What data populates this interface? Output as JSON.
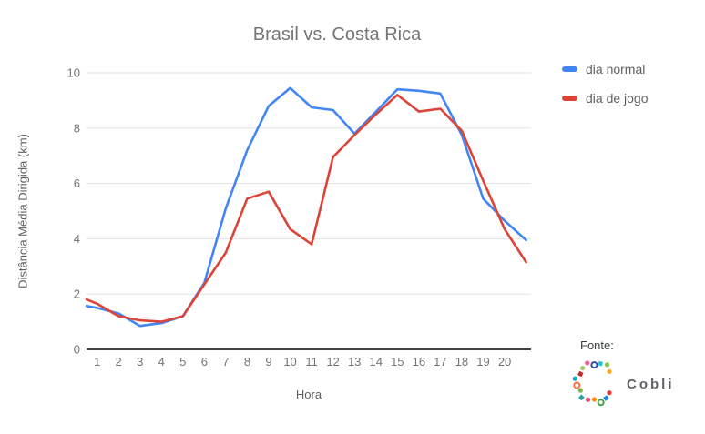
{
  "title": "Brasil vs. Costa Rica",
  "legend": {
    "items": [
      {
        "label": "dia normal",
        "color": "#4285F4"
      },
      {
        "label": "dia de jogo",
        "color": "#DB4437"
      }
    ]
  },
  "chart_data": {
    "type": "line",
    "title": "Brasil vs. Costa Rica",
    "xlabel": "Hora",
    "ylabel": "Distância Média Dirigida (km)",
    "x": [
      1,
      2,
      3,
      4,
      5,
      6,
      7,
      8,
      9,
      10,
      11,
      12,
      13,
      14,
      15,
      16,
      17,
      18,
      19,
      20,
      21
    ],
    "x_tick_labels": [
      "1",
      "2",
      "3",
      "4",
      "5",
      "6",
      "7",
      "8",
      "9",
      "10",
      "11",
      "12",
      "13",
      "14",
      "15",
      "16",
      "17",
      "18",
      "19",
      "20"
    ],
    "yticks": [
      0,
      2,
      4,
      6,
      8,
      10
    ],
    "ylim": [
      0,
      10
    ],
    "grid": true,
    "legend_position": "top-right",
    "axis_color": "#424242",
    "grid_color": "#e3e3e3",
    "series": [
      {
        "name": "dia normal",
        "color": "#4285F4",
        "values": [
          1.5,
          1.3,
          0.85,
          0.95,
          1.2,
          2.4,
          5.1,
          7.2,
          8.8,
          9.45,
          8.75,
          8.65,
          7.8,
          8.6,
          9.4,
          9.35,
          9.25,
          7.75,
          5.45,
          4.65,
          3.95
        ]
      },
      {
        "name": "dia de jogo",
        "color": "#DB4437",
        "values": [
          1.65,
          1.2,
          1.05,
          1.0,
          1.2,
          2.35,
          3.5,
          5.45,
          5.7,
          4.35,
          3.8,
          6.95,
          7.75,
          8.5,
          9.2,
          8.6,
          8.7,
          7.9,
          6.1,
          4.35,
          3.15
        ]
      }
    ]
  },
  "source": {
    "label": "Fonte:",
    "brand": "Cobli",
    "logo_colors": [
      "#e53935",
      "#1e88e5",
      "#43a047",
      "#fb8c00",
      "#ec407a",
      "#26a69a",
      "#7cb342",
      "#ff7043",
      "#00acc1",
      "#c62828",
      "#9ccc65",
      "#f06292",
      "#3949ab",
      "#26c6da",
      "#8bc34a",
      "#ffa726"
    ]
  }
}
